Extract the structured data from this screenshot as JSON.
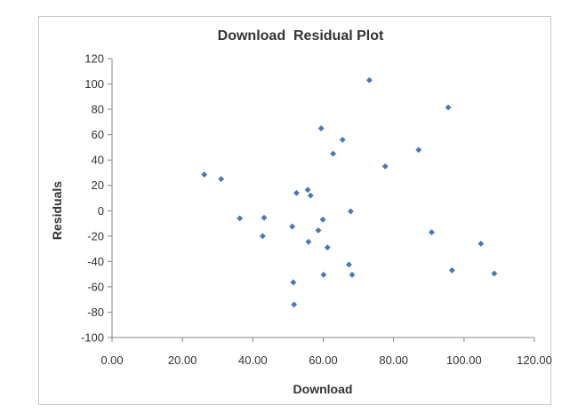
{
  "chart_data": {
    "type": "scatter",
    "title": "Download  Residual Plot",
    "xlabel": "Download",
    "ylabel": "Residuals",
    "xlim": [
      0,
      120
    ],
    "ylim": [
      -100,
      120
    ],
    "x_ticks": [
      0,
      20,
      40,
      60,
      80,
      100,
      120
    ],
    "y_ticks": [
      -100,
      -80,
      -60,
      -40,
      -20,
      0,
      20,
      40,
      60,
      80,
      100,
      120
    ],
    "x_tick_labels": [
      "0.00",
      "20.00",
      "40.00",
      "60.00",
      "80.00",
      "100.00",
      "120.00"
    ],
    "y_tick_labels": [
      "-100",
      "-80",
      "-60",
      "-40",
      "-20",
      "0",
      "20",
      "40",
      "60",
      "80",
      "100",
      "120"
    ],
    "grid": false,
    "legend": "none",
    "marker_color": "#4a78b4",
    "points": [
      {
        "x": 26.2,
        "y": 28.5
      },
      {
        "x": 31.0,
        "y": 25.0
      },
      {
        "x": 36.3,
        "y": -6.0
      },
      {
        "x": 42.8,
        "y": -20.0
      },
      {
        "x": 43.2,
        "y": -5.5
      },
      {
        "x": 51.2,
        "y": -12.5
      },
      {
        "x": 51.5,
        "y": -56.5
      },
      {
        "x": 51.7,
        "y": -74.0
      },
      {
        "x": 52.4,
        "y": 14.0
      },
      {
        "x": 55.6,
        "y": 16.5
      },
      {
        "x": 55.8,
        "y": -24.5
      },
      {
        "x": 56.4,
        "y": 12.0
      },
      {
        "x": 58.6,
        "y": -15.5
      },
      {
        "x": 59.4,
        "y": 65.0
      },
      {
        "x": 59.9,
        "y": -7.0
      },
      {
        "x": 60.1,
        "y": -50.5
      },
      {
        "x": 61.2,
        "y": -29.0
      },
      {
        "x": 62.8,
        "y": 45.0
      },
      {
        "x": 65.5,
        "y": 56.0
      },
      {
        "x": 67.3,
        "y": -42.5
      },
      {
        "x": 67.8,
        "y": -0.5
      },
      {
        "x": 68.2,
        "y": -50.5
      },
      {
        "x": 73.1,
        "y": 103.0
      },
      {
        "x": 77.6,
        "y": 35.0
      },
      {
        "x": 87.1,
        "y": 48.0
      },
      {
        "x": 90.8,
        "y": -17.0
      },
      {
        "x": 95.5,
        "y": 81.5
      },
      {
        "x": 96.6,
        "y": -47.0
      },
      {
        "x": 104.8,
        "y": -26.0
      },
      {
        "x": 108.6,
        "y": -49.5
      }
    ]
  }
}
